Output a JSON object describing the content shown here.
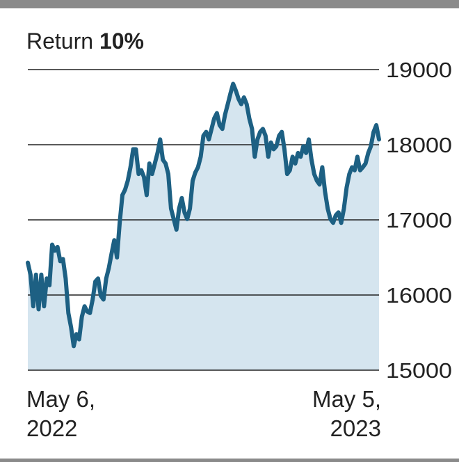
{
  "chart_data": {
    "type": "area",
    "title": "Return",
    "title_highlight": "10%",
    "values": [
      16430,
      16270,
      15850,
      16270,
      15810,
      16270,
      15850,
      16220,
      16130,
      16670,
      16590,
      16640,
      16450,
      16480,
      16220,
      15760,
      15570,
      15320,
      15480,
      15410,
      15710,
      15850,
      15780,
      15760,
      15940,
      16180,
      16220,
      15990,
      15940,
      16220,
      16360,
      16550,
      16730,
      16500,
      16960,
      17330,
      17400,
      17520,
      17700,
      17940,
      17940,
      17610,
      17660,
      17570,
      17330,
      17750,
      17610,
      17750,
      17890,
      18070,
      17800,
      17750,
      17610,
      17150,
      17010,
      16870,
      17150,
      17290,
      17100,
      17010,
      17150,
      17520,
      17630,
      17700,
      17840,
      18120,
      18170,
      18070,
      18210,
      18350,
      18420,
      18260,
      18210,
      18400,
      18540,
      18680,
      18810,
      18720,
      18610,
      18540,
      18630,
      18540,
      18350,
      18210,
      17840,
      18070,
      18170,
      18210,
      18120,
      17840,
      18030,
      17940,
      17980,
      18120,
      18170,
      17940,
      17610,
      17660,
      17840,
      17750,
      17890,
      17840,
      17980,
      17890,
      18070,
      17800,
      17610,
      17520,
      17470,
      17700,
      17380,
      17150,
      17010,
      16960,
      17060,
      17100,
      16960,
      17150,
      17430,
      17610,
      17700,
      17660,
      17840,
      17660,
      17700,
      17750,
      17890,
      17980,
      18170,
      18260,
      18070
    ],
    "color": "#1d6083",
    "fill_color": "#d5e5ef",
    "xlim": [
      0,
      130
    ],
    "xticks": [
      {
        "value": 0,
        "label": [
          "May 6,",
          "2022"
        ]
      },
      {
        "value": 130,
        "label": [
          "May 5,",
          "2023"
        ]
      }
    ],
    "ylim": [
      15000,
      19000
    ],
    "yticks": [
      15000,
      16000,
      17000,
      18000,
      19000
    ],
    "grid": true
  }
}
